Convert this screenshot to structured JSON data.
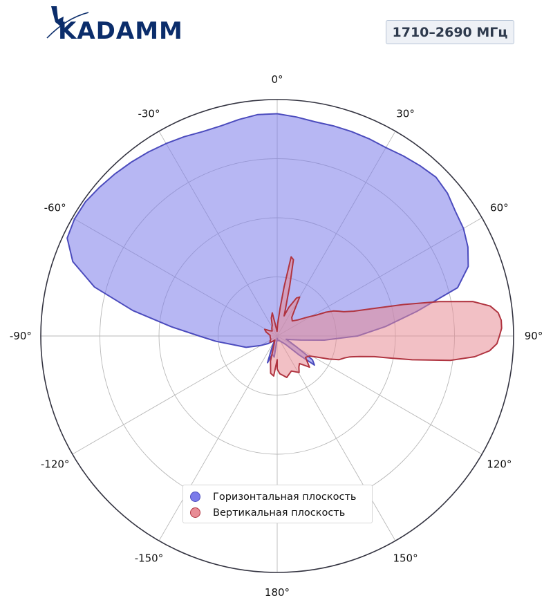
{
  "logo": {
    "text": "KADAMM"
  },
  "band_label": "1710–2690 МГц",
  "chart_data": {
    "type": "polar-area",
    "angle_ticks": [
      "0°",
      "30°",
      "60°",
      "90°",
      "120°",
      "150°",
      "180°",
      "-150°",
      "-120°",
      "-90°",
      "-60°",
      "-30°"
    ],
    "angle_tick_values": [
      0,
      30,
      60,
      90,
      120,
      150,
      180,
      -150,
      -120,
      -90,
      -60,
      -30
    ],
    "angle_direction": "clockwise, 0° at top",
    "radial_rings": 4,
    "radial_range": [
      0,
      1
    ],
    "radial_labels_shown": false,
    "grid": true,
    "legend_position": "bottom-center",
    "series": [
      {
        "name": "Горизонтальная плоскость",
        "color": "#4b4bbd",
        "fill": "#7b7bea",
        "points": [
          [
            -172,
            0.09
          ],
          [
            -165,
            0.08
          ],
          [
            -160,
            0.12
          ],
          [
            -155,
            0.05
          ],
          [
            -150,
            0.02
          ],
          [
            -140,
            0.03
          ],
          [
            -130,
            0.05
          ],
          [
            -120,
            0.08
          ],
          [
            -110,
            0.14
          ],
          [
            -100,
            0.2
          ],
          [
            -95,
            0.26
          ],
          [
            -90,
            0.33
          ],
          [
            -85,
            0.45
          ],
          [
            -80,
            0.62
          ],
          [
            -75,
            0.8
          ],
          [
            -70,
            0.92
          ],
          [
            -65,
            0.98
          ],
          [
            -60,
            0.99
          ],
          [
            -55,
            0.99
          ],
          [
            -50,
            0.98
          ],
          [
            -45,
            0.97
          ],
          [
            -40,
            0.96
          ],
          [
            -35,
            0.95
          ],
          [
            -30,
            0.94
          ],
          [
            -25,
            0.93
          ],
          [
            -20,
            0.92
          ],
          [
            -15,
            0.92
          ],
          [
            -10,
            0.93
          ],
          [
            -5,
            0.94
          ],
          [
            0,
            0.94
          ],
          [
            5,
            0.93
          ],
          [
            10,
            0.92
          ],
          [
            15,
            0.92
          ],
          [
            20,
            0.92
          ],
          [
            25,
            0.92
          ],
          [
            30,
            0.92
          ],
          [
            35,
            0.93
          ],
          [
            40,
            0.94
          ],
          [
            45,
            0.95
          ],
          [
            50,
            0.94
          ],
          [
            55,
            0.92
          ],
          [
            60,
            0.91
          ],
          [
            65,
            0.89
          ],
          [
            70,
            0.86
          ],
          [
            75,
            0.79
          ],
          [
            80,
            0.6
          ],
          [
            85,
            0.46
          ],
          [
            90,
            0.34
          ],
          [
            95,
            0.2
          ],
          [
            100,
            0.1
          ],
          [
            105,
            0.06
          ],
          [
            110,
            0.04
          ],
          [
            115,
            0.06
          ],
          [
            120,
            0.1
          ],
          [
            124,
            0.18
          ],
          [
            128,
            0.2
          ],
          [
            131,
            0.12
          ],
          [
            135,
            0.05
          ],
          [
            145,
            0.03
          ],
          [
            160,
            0.02
          ],
          [
            172,
            0.02
          ],
          [
            180,
            0.01
          ]
        ]
      },
      {
        "name": "Вертикальная плоскость",
        "color": "#b03440",
        "fill": "#e88c95",
        "points": [
          [
            -180,
            0.1
          ],
          [
            -175,
            0.17
          ],
          [
            -170,
            0.16
          ],
          [
            -165,
            0.11
          ],
          [
            -160,
            0.04
          ],
          [
            -150,
            0.02
          ],
          [
            -140,
            0.03
          ],
          [
            -130,
            0.04
          ],
          [
            -115,
            0.03
          ],
          [
            -105,
            0.03
          ],
          [
            -95,
            0.03
          ],
          [
            -85,
            0.03
          ],
          [
            -70,
            0.05
          ],
          [
            -62,
            0.06
          ],
          [
            -55,
            0.04
          ],
          [
            -45,
            0.03
          ],
          [
            -35,
            0.04
          ],
          [
            -25,
            0.05
          ],
          [
            -18,
            0.08
          ],
          [
            -12,
            0.1
          ],
          [
            -8,
            0.04
          ],
          [
            -2,
            0.02
          ],
          [
            2,
            0.05
          ],
          [
            6,
            0.12
          ],
          [
            8,
            0.21
          ],
          [
            10,
            0.34
          ],
          [
            12,
            0.33
          ],
          [
            14,
            0.22
          ],
          [
            17,
            0.12
          ],
          [
            19,
            0.09
          ],
          [
            22,
            0.13
          ],
          [
            27,
            0.18
          ],
          [
            30,
            0.19
          ],
          [
            33,
            0.14
          ],
          [
            38,
            0.1
          ],
          [
            45,
            0.09
          ],
          [
            52,
            0.11
          ],
          [
            58,
            0.15
          ],
          [
            62,
            0.19
          ],
          [
            64,
            0.23
          ],
          [
            66,
            0.26
          ],
          [
            68,
            0.28
          ],
          [
            70,
            0.3
          ],
          [
            72,
            0.34
          ],
          [
            74,
            0.42
          ],
          [
            76,
            0.55
          ],
          [
            78,
            0.7
          ],
          [
            80,
            0.84
          ],
          [
            82,
            0.91
          ],
          [
            84,
            0.94
          ],
          [
            86,
            0.95
          ],
          [
            88,
            0.95
          ],
          [
            90,
            0.94
          ],
          [
            92,
            0.93
          ],
          [
            94,
            0.9
          ],
          [
            96,
            0.84
          ],
          [
            98,
            0.74
          ],
          [
            100,
            0.58
          ],
          [
            101,
            0.49
          ],
          [
            102,
            0.42
          ],
          [
            104,
            0.36
          ],
          [
            106,
            0.32
          ],
          [
            108,
            0.3
          ],
          [
            111,
            0.28
          ],
          [
            114,
            0.24
          ],
          [
            118,
            0.19
          ],
          [
            122,
            0.16
          ],
          [
            127,
            0.15
          ],
          [
            131,
            0.17
          ],
          [
            134,
            0.19
          ],
          [
            137,
            0.17
          ],
          [
            141,
            0.15
          ],
          [
            145,
            0.16
          ],
          [
            149,
            0.18
          ],
          [
            153,
            0.17
          ],
          [
            158,
            0.16
          ],
          [
            163,
            0.17
          ],
          [
            167,
            0.18
          ],
          [
            171,
            0.17
          ],
          [
            176,
            0.16
          ],
          [
            180,
            0.14
          ]
        ]
      }
    ]
  }
}
